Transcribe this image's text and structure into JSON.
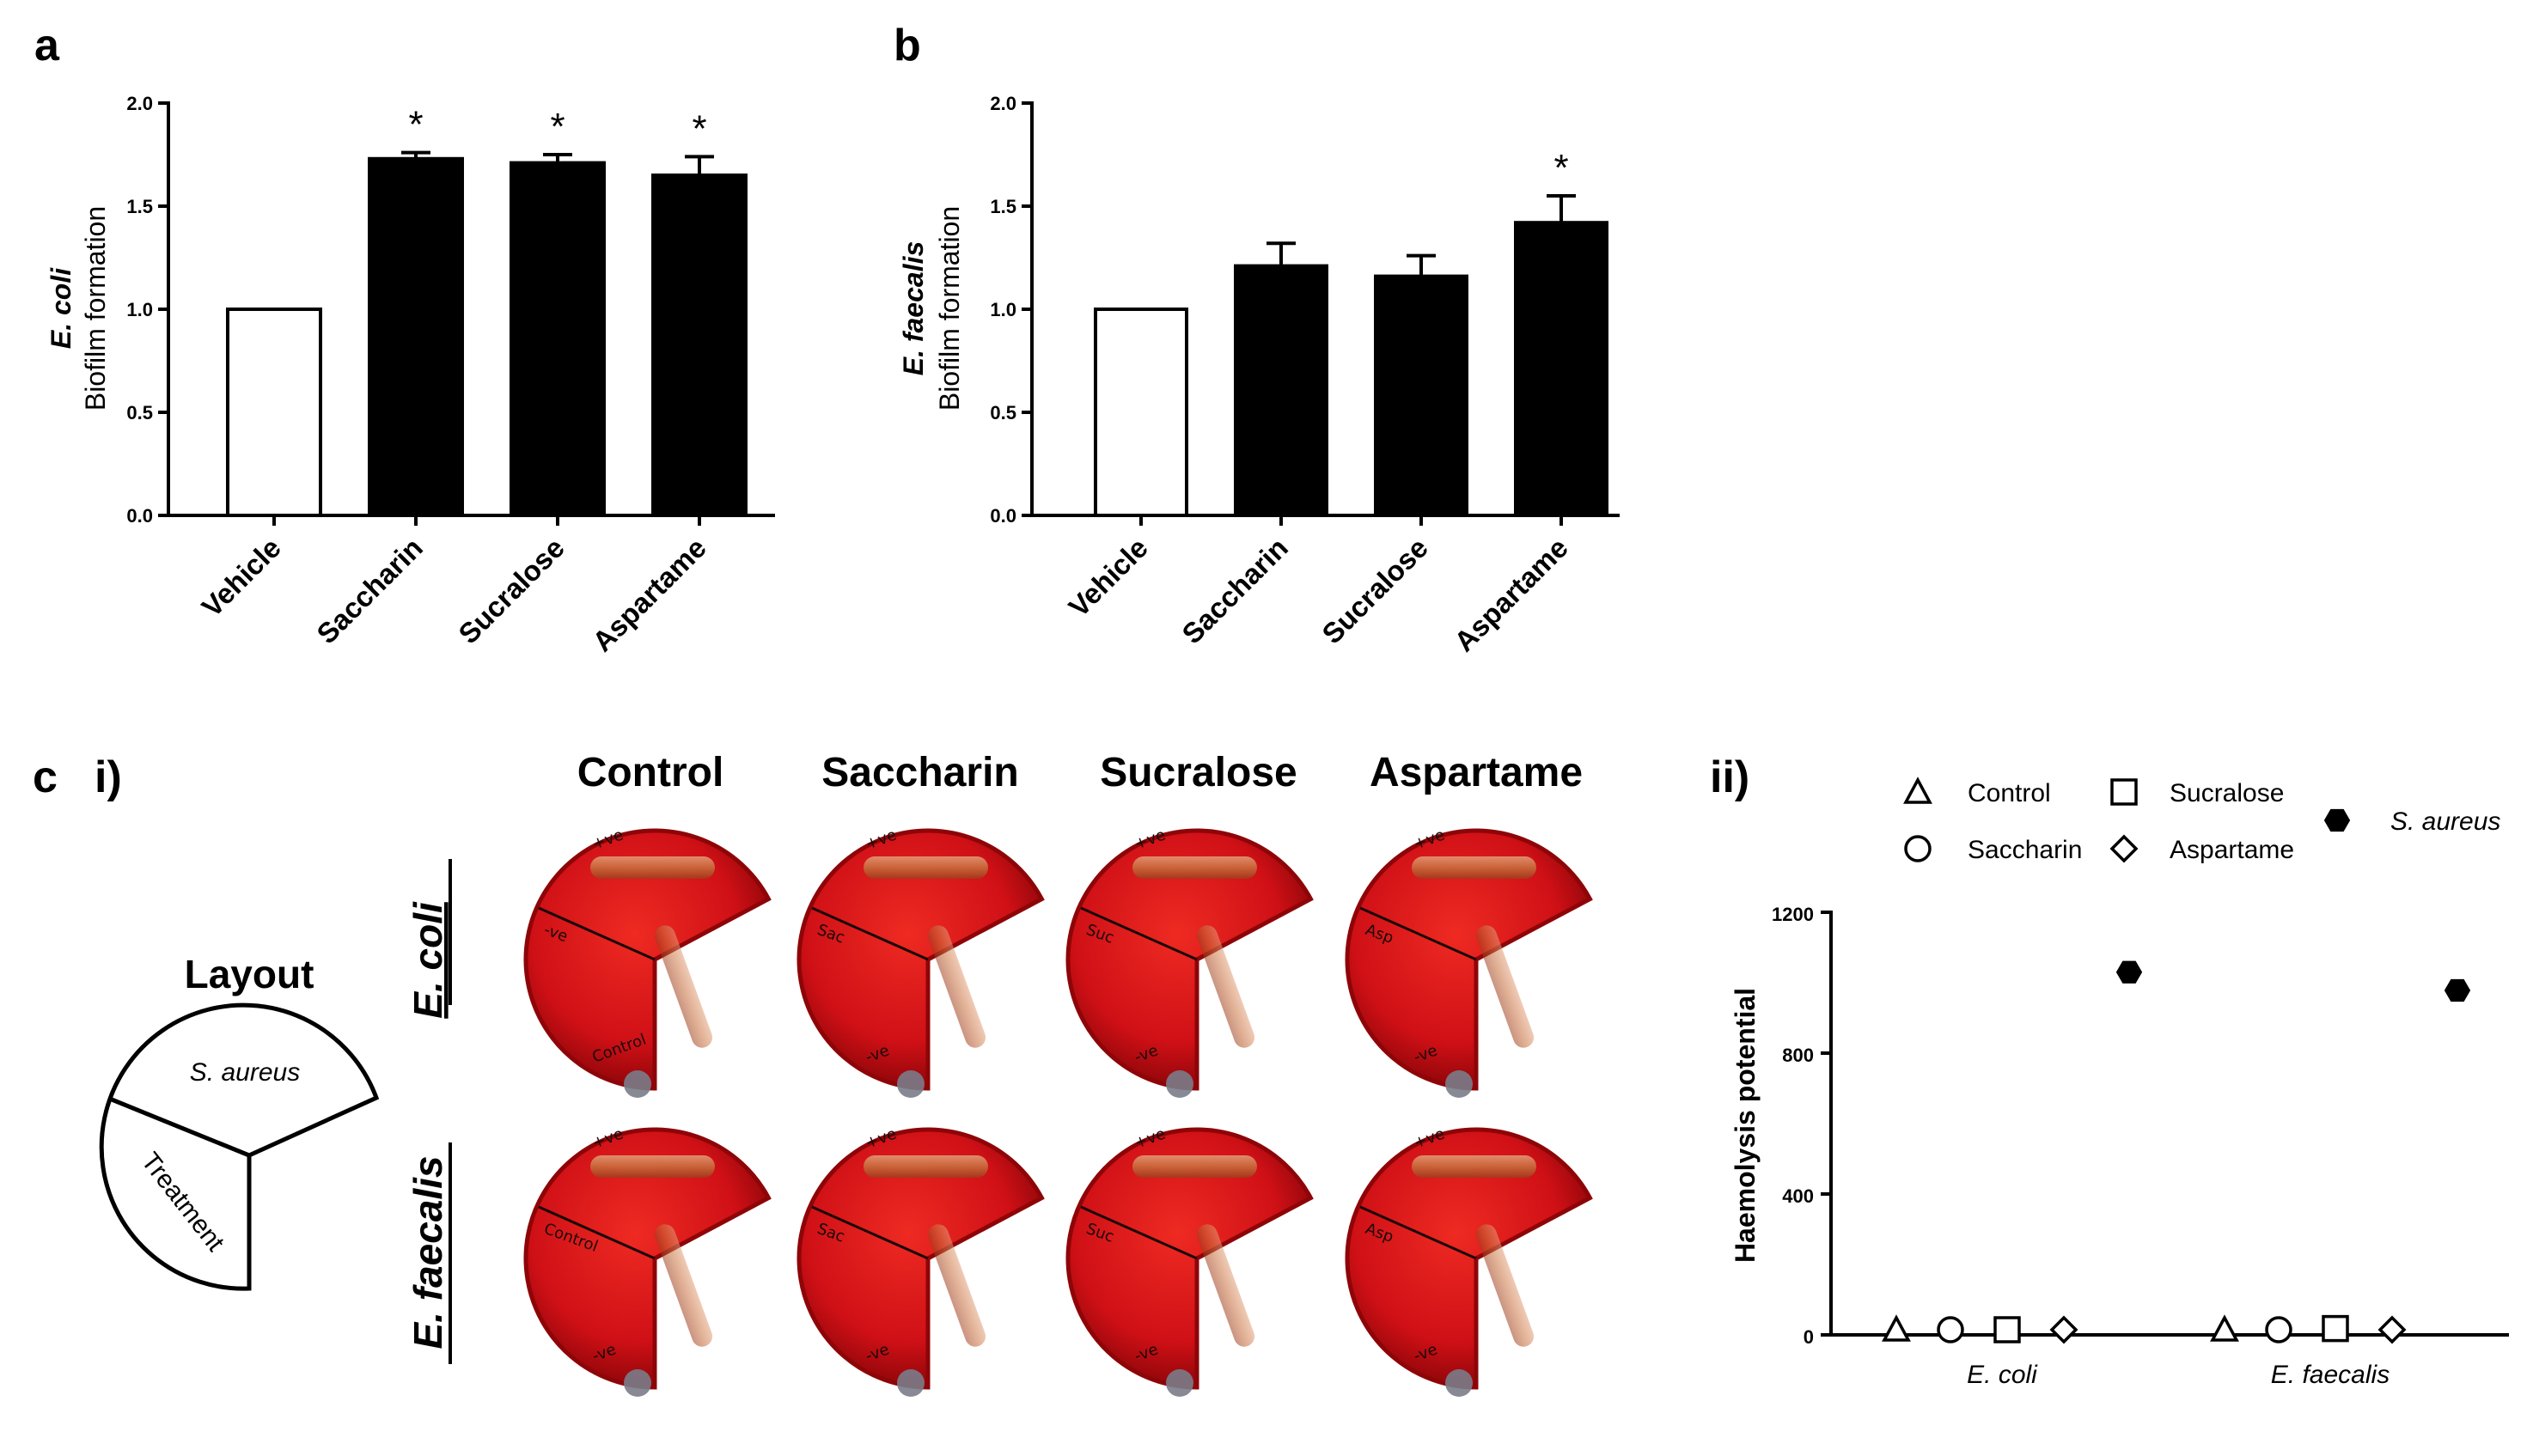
{
  "panel_labels": {
    "a": "a",
    "b": "b",
    "c": "c",
    "ci": "i)",
    "cii": "ii)"
  },
  "chart_data": [
    {
      "panel": "a",
      "type": "bar",
      "categories": [
        "Vehicle",
        "Saccharin",
        "Sucralose",
        "Aspartame"
      ],
      "values": [
        1.0,
        1.73,
        1.71,
        1.65
      ],
      "errors": [
        0,
        0.03,
        0.04,
        0.09
      ],
      "fills": [
        "#ffffff",
        "#000000",
        "#000000",
        "#000000"
      ],
      "significance": [
        "",
        "*",
        "*",
        "*"
      ],
      "ylabel_italic": "E. coli",
      "ylabel": "Biofilm formation",
      "ylim": [
        0,
        2.0
      ],
      "yticks": [
        "0.0",
        "0.5",
        "1.0",
        "1.5",
        "2.0"
      ]
    },
    {
      "panel": "b",
      "type": "bar",
      "categories": [
        "Vehicle",
        "Saccharin",
        "Sucralose",
        "Aspartame"
      ],
      "values": [
        1.0,
        1.21,
        1.16,
        1.42
      ],
      "errors": [
        0,
        0.11,
        0.1,
        0.13
      ],
      "fills": [
        "#ffffff",
        "#000000",
        "#000000",
        "#000000"
      ],
      "significance": [
        "",
        "",
        "",
        "*"
      ],
      "ylabel_italic": "E. faecalis",
      "ylabel": "Biofilm formation",
      "ylim": [
        0,
        2.0
      ],
      "yticks": [
        "0.0",
        "0.5",
        "1.0",
        "1.5",
        "2.0"
      ]
    },
    {
      "panel": "c-ii",
      "type": "scatter",
      "groups": [
        "E. coli",
        "E. faecalis"
      ],
      "ylabel": "Haemolysis potential",
      "ylim": [
        0,
        1200
      ],
      "yticks": [
        "0",
        "400",
        "800",
        "1200"
      ],
      "series": [
        {
          "name": "Control",
          "marker": "triangle",
          "values": [
            10,
            0
          ]
        },
        {
          "name": "Saccharin",
          "marker": "circle",
          "values": [
            5,
            8
          ]
        },
        {
          "name": "Sucralose",
          "marker": "square",
          "values": [
            12,
            18
          ]
        },
        {
          "name": "Aspartame",
          "marker": "diamond",
          "values": [
            3,
            5
          ]
        },
        {
          "name": "S. aureus",
          "marker": "hexagon",
          "values": [
            1030,
            978
          ]
        }
      ]
    }
  ],
  "plates": {
    "columns": [
      "Control",
      "Saccharin",
      "Sucralose",
      "Aspartame"
    ],
    "rows": [
      "E. coli",
      "E. faecalis"
    ],
    "ecoli_row": [
      {
        "top": "+ve",
        "left": "-ve",
        "bottom": "Control"
      },
      {
        "top": "+ve",
        "left": "Sac",
        "bottom": "-ve"
      },
      {
        "top": "+ve",
        "left": "Suc",
        "bottom": "-ve"
      },
      {
        "top": "+ve",
        "left": "Asp",
        "bottom": "-ve"
      }
    ],
    "efaecalis_row": [
      {
        "top": "+ve",
        "left": "Control",
        "bottom": "-ve"
      },
      {
        "top": "+ve",
        "left": "Sac",
        "bottom": "-ve"
      },
      {
        "top": "+ve",
        "left": "Suc",
        "bottom": "-ve"
      },
      {
        "top": "+ve",
        "left": "Asp",
        "bottom": "-ve"
      }
    ]
  },
  "layout_diagram": {
    "title": "Layout",
    "sector_top": "S. aureus",
    "sector_left": "Treatment"
  },
  "colors": {
    "agar": "#d3141a",
    "agar_dark": "#8e0508",
    "streak": "#c86a3a",
    "bar_black": "#000000"
  }
}
